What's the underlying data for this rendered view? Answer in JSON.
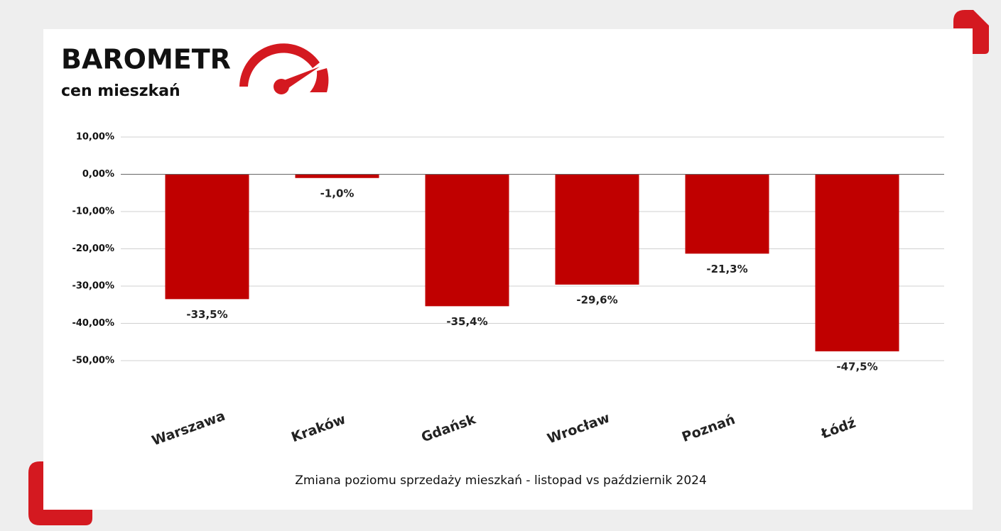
{
  "chart_data": {
    "type": "bar",
    "title": "BAROMETR",
    "subtitle": "cen mieszkań",
    "x_label": "Zmiana poziomu sprzedaży mieszkań - listopad vs październik  2024",
    "categories": [
      "Warszawa",
      "Kraków",
      "Gdańsk",
      "Wrocław",
      "Poznań",
      "Łódź"
    ],
    "values": [
      -33.5,
      -1.0,
      -35.4,
      -29.6,
      -21.3,
      -47.5
    ],
    "value_labels": [
      "-33,5%",
      "-1,0%",
      "-35,4%",
      "-29,6%",
      "-21,3%",
      "-47,5%"
    ],
    "color": "#c00000",
    "ylim": [
      -50,
      10
    ],
    "yticks": [
      {
        "value": 10,
        "label": "10,00%"
      },
      {
        "value": 0,
        "label": "0,00%"
      },
      {
        "value": -10,
        "label": "-10,00%"
      },
      {
        "value": -20,
        "label": "-20,00%"
      },
      {
        "value": -30,
        "label": "-30,00%"
      },
      {
        "value": -40,
        "label": "-40,00%"
      },
      {
        "value": -50,
        "label": "-50,00%"
      }
    ],
    "grid": true
  }
}
